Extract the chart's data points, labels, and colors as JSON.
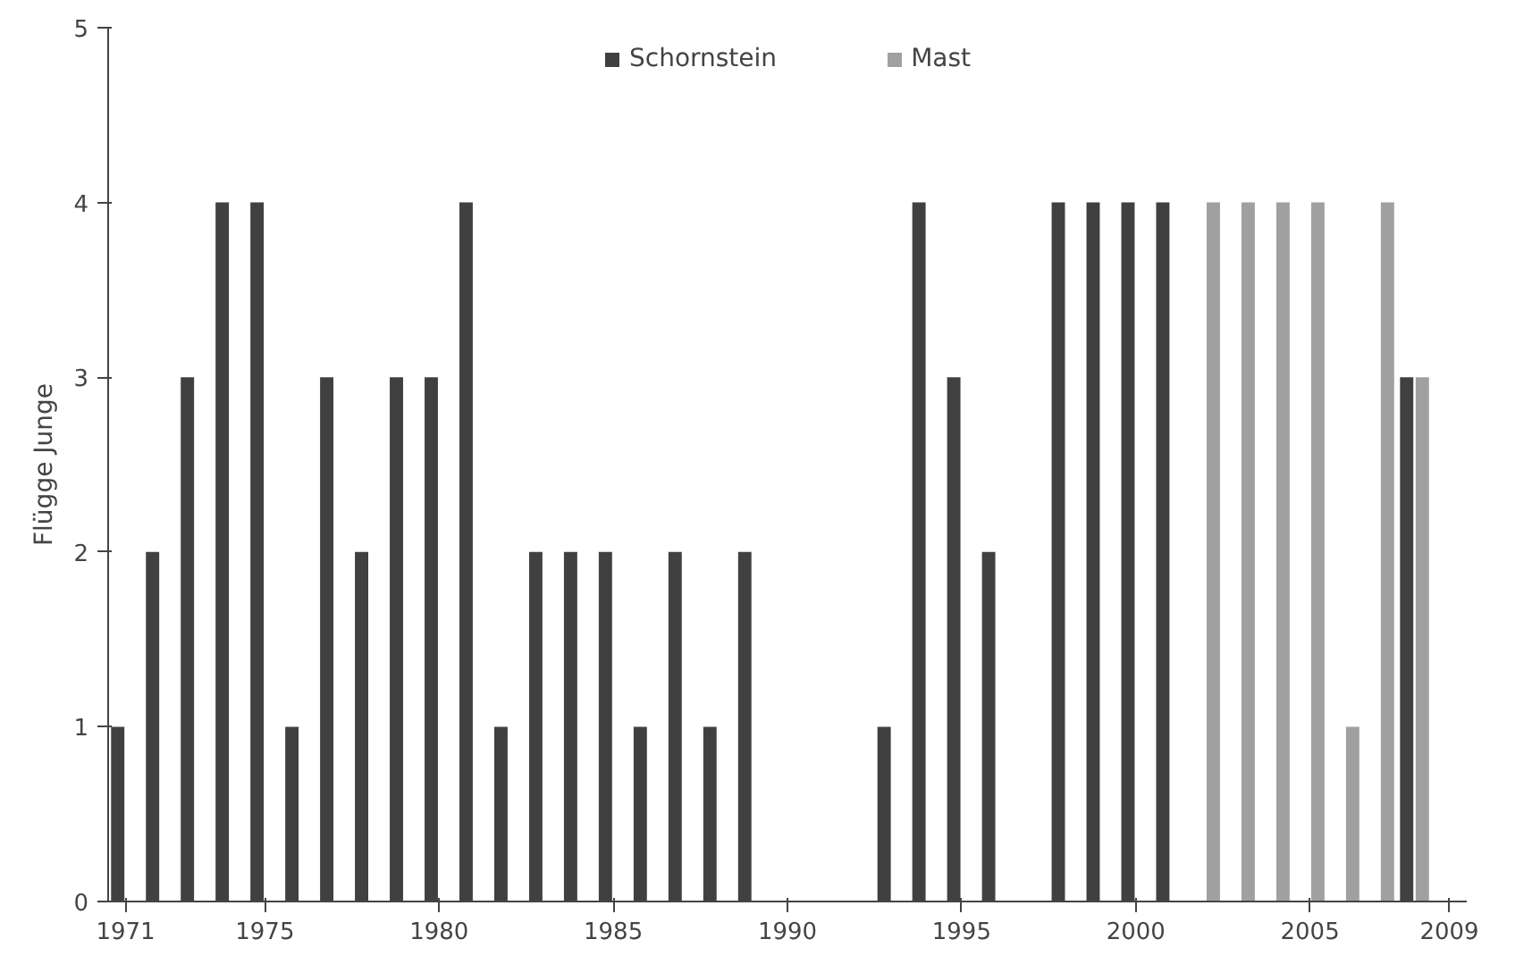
{
  "chart_data": {
    "type": "bar",
    "ylabel": "Flügge Junge",
    "categories": [
      "1971",
      null,
      null,
      null,
      "1975",
      null,
      null,
      null,
      null,
      "1980",
      null,
      null,
      null,
      null,
      "1985",
      null,
      null,
      null,
      null,
      "1990",
      null,
      null,
      null,
      null,
      "1995",
      null,
      null,
      null,
      null,
      "2000",
      null,
      null,
      null,
      null,
      "2005",
      null,
      null,
      null,
      "2009"
    ],
    "series": [
      {
        "name": "Schornstein",
        "color": "#404040",
        "values": [
          1,
          2,
          3,
          4,
          4,
          1,
          3,
          2,
          3,
          3,
          4,
          1,
          2,
          2,
          2,
          1,
          2,
          1,
          2,
          null,
          null,
          null,
          1,
          4,
          3,
          2,
          null,
          4,
          4,
          4,
          4,
          null,
          null,
          null,
          null,
          null,
          null,
          3,
          null
        ]
      },
      {
        "name": "Mast",
        "color": "#a0a0a0",
        "values": [
          null,
          null,
          null,
          null,
          null,
          null,
          null,
          null,
          null,
          null,
          null,
          null,
          null,
          null,
          null,
          null,
          null,
          null,
          null,
          null,
          null,
          null,
          null,
          null,
          null,
          null,
          null,
          null,
          null,
          null,
          null,
          4,
          4,
          4,
          4,
          1,
          4,
          3,
          null
        ]
      }
    ],
    "ylim": [
      0,
      5
    ],
    "yticks": [
      0,
      1,
      2,
      3,
      4,
      5
    ],
    "grid": false,
    "legend": "top"
  }
}
